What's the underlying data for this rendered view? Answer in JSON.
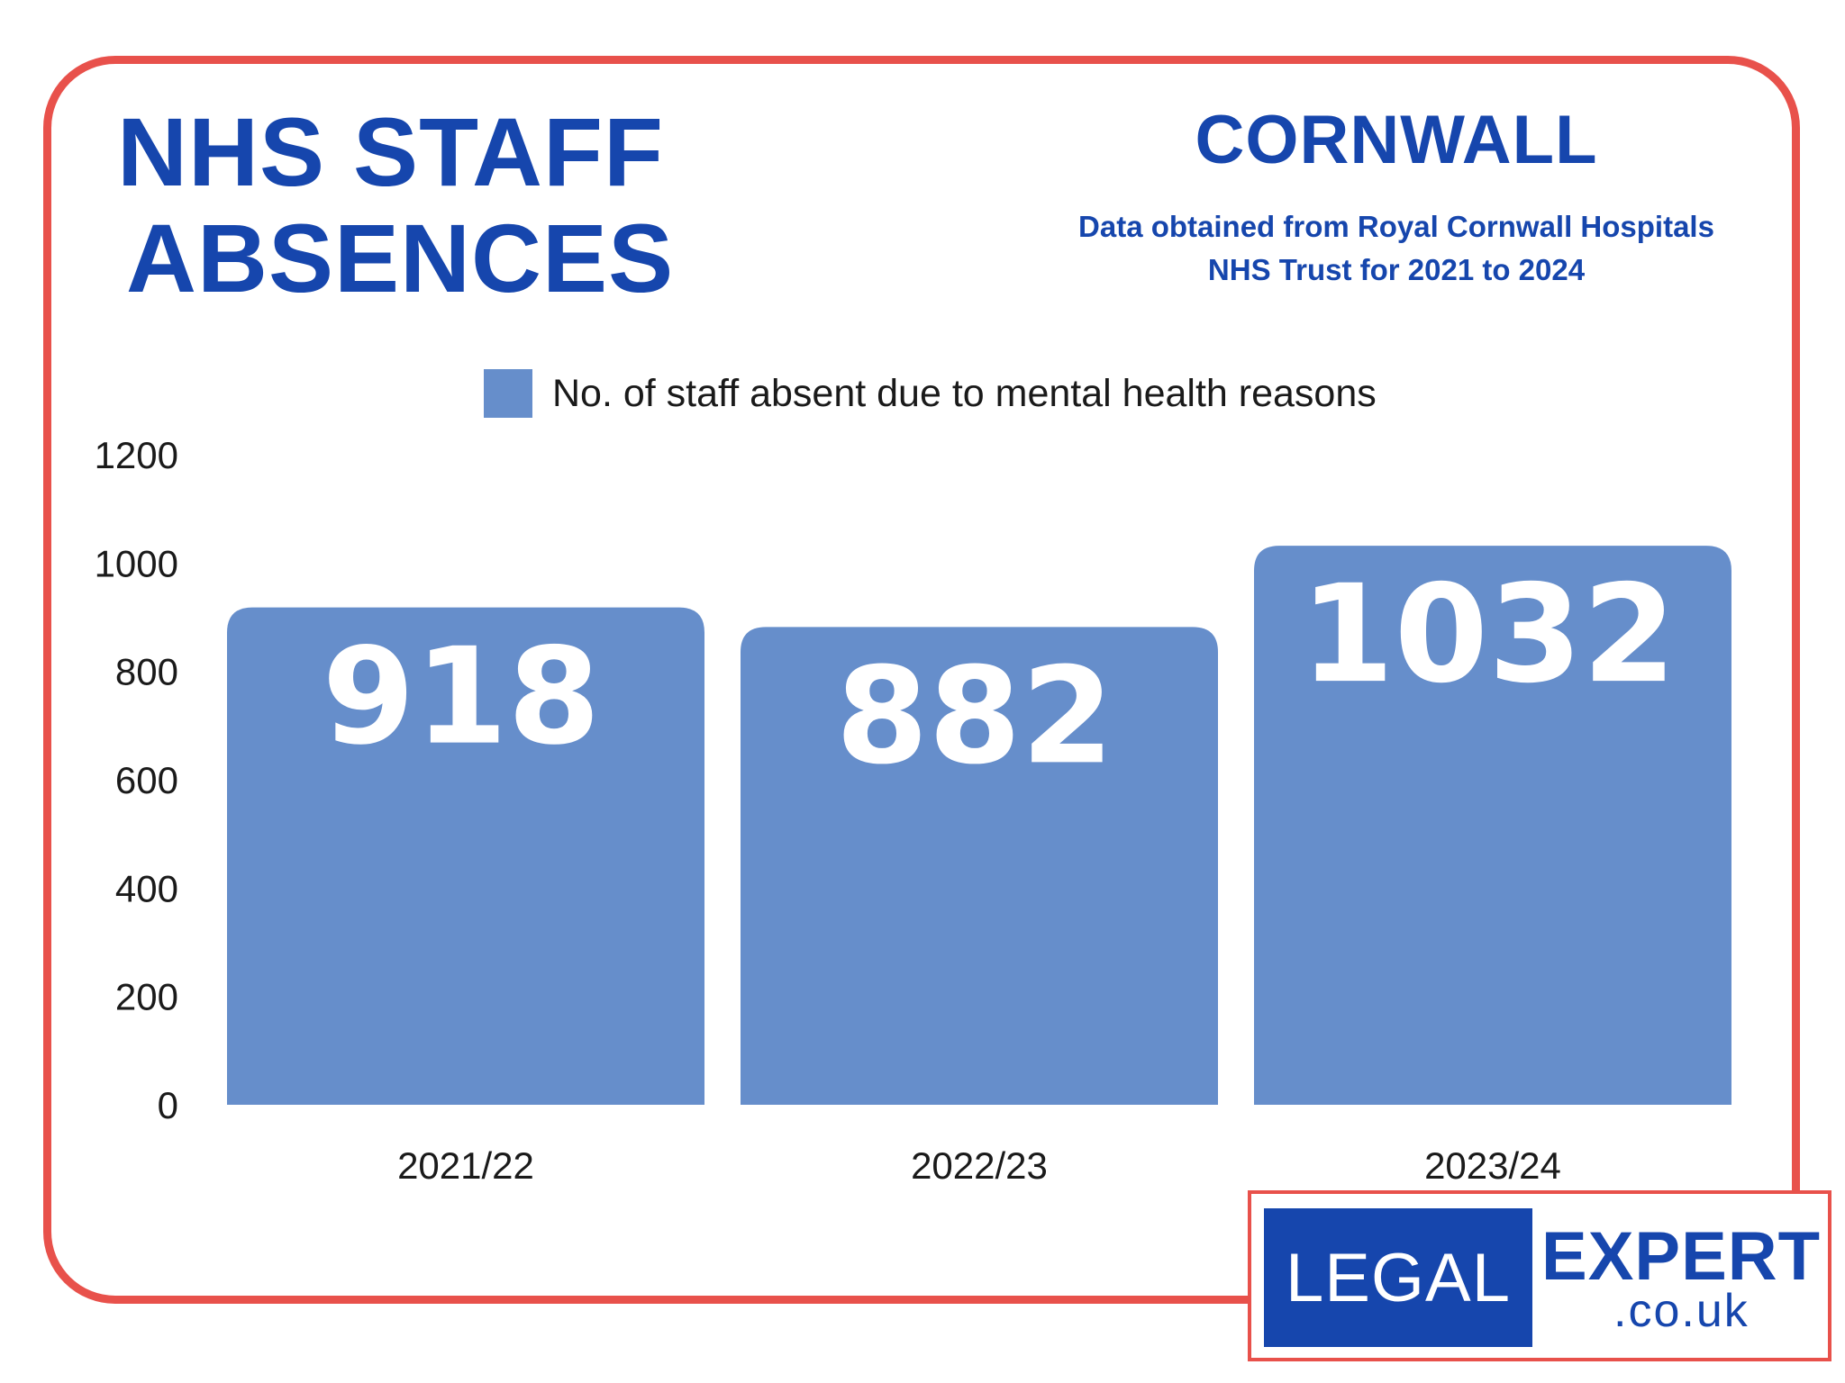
{
  "header": {
    "title_line1": "NHS STAFF",
    "title_line2": "ABSENCES",
    "region": "CORNWALL",
    "source_line1": "Data obtained from Royal Cornwall Hospitals",
    "source_line2": "NHS Trust for 2021 to 2024"
  },
  "logo": {
    "word1": "LEGAL",
    "word2": "EXPERT",
    "word3": ".co.uk"
  },
  "colors": {
    "accent": "#1646ad",
    "bar": "#668ecb",
    "frame": "#e8514b"
  },
  "chart_data": {
    "type": "bar",
    "title": "NHS STAFF ABSENCES",
    "categories": [
      "2021/22",
      "2022/23",
      "2023/24"
    ],
    "series": [
      {
        "name": "No. of staff absent due to mental health reasons",
        "values": [
          918,
          882,
          1032
        ]
      }
    ],
    "data_labels": [
      "918",
      "882",
      "1032"
    ],
    "yticks": [
      0,
      200,
      400,
      600,
      800,
      1000,
      1200
    ],
    "ylim": [
      0,
      1200
    ],
    "xlabel": "",
    "ylabel": "",
    "legend": "top-center",
    "grid": false
  }
}
